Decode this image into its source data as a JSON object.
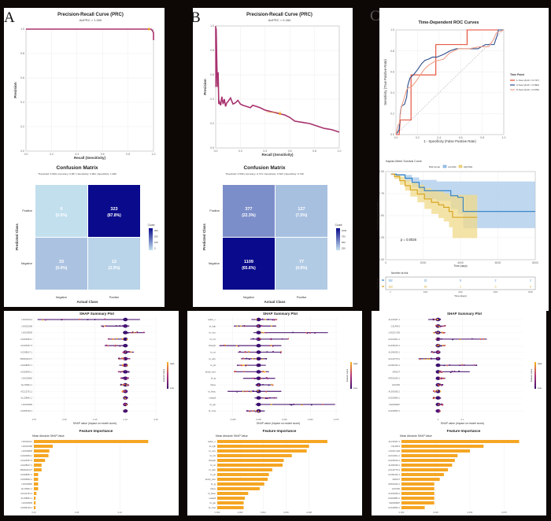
{
  "panels": {
    "A": "A",
    "B": "B",
    "C": "C"
  },
  "chart_data": [
    {
      "id": "A-prc",
      "type": "line",
      "title": "Precision-Recall Curve (PRC)",
      "subtitle": "AUPRC = 1.000",
      "xlabel": "Recall (Sensitivity)",
      "ylabel": "Precision",
      "xlim": [
        0,
        1
      ],
      "ylim": [
        0,
        1
      ],
      "xticks": [
        "0.0",
        "0.2",
        "0.4",
        "0.6",
        "0.8",
        "1.0"
      ],
      "yticks": [
        "0.0",
        "0.2",
        "0.4",
        "0.6",
        "0.8",
        "1.0"
      ],
      "x": [
        0,
        0.96,
        0.98,
        0.99,
        1.0,
        1.0
      ],
      "y": [
        1,
        1,
        1,
        0.99,
        0.97,
        0.91
      ],
      "threshold_point": {
        "x": 0.965,
        "y": 1.0
      },
      "grid": true,
      "color": "#a8326e",
      "marker_color": "#f0a020"
    },
    {
      "id": "A-cm",
      "type": "heatmap",
      "title": "Confusion Matrix",
      "subtitle": "Threshold: 0.500 | Accuracy: 0.967 | Sensitivity: 0.964 | Specificity: 1.000",
      "xlabel": "Actual Class",
      "ylabel": "Predicted Class",
      "x_categories": [
        "Negative",
        "Positive"
      ],
      "y_categories": [
        "Positive",
        "Negative"
      ],
      "cells": [
        {
          "pred": "Positive",
          "actual": "Negative",
          "count": "0",
          "pct": "(0.0%)"
        },
        {
          "pred": "Positive",
          "actual": "Positive",
          "count": "323",
          "pct": "(87.8%)"
        },
        {
          "pred": "Negative",
          "actual": "Negative",
          "count": "33",
          "pct": "(9.0%)"
        },
        {
          "pred": "Negative",
          "actual": "Positive",
          "count": "12",
          "pct": "(3.3%)"
        }
      ],
      "values": [
        [
          0,
          323
        ],
        [
          33,
          12
        ]
      ],
      "max": 323,
      "legend": {
        "title": "Count",
        "ticks": [
          "300",
          "200",
          "100",
          "0"
        ]
      }
    },
    {
      "id": "B-prc",
      "type": "line",
      "title": "Precision-Recall Curve (PRC)",
      "subtitle": "AUPRC = 0.284",
      "xlabel": "Recall (Sensitivity)",
      "ylabel": "Precision",
      "xlim": [
        0,
        1
      ],
      "ylim": [
        0,
        1
      ],
      "xticks": [
        "0.0",
        "0.2",
        "0.4",
        "0.6",
        "0.8",
        "1.0"
      ],
      "yticks": [
        "0.0",
        "0.2",
        "0.4",
        "0.6",
        "0.8",
        "1.0"
      ],
      "x": [
        0.0,
        0.002,
        0.004,
        0.01,
        0.015,
        0.02,
        0.025,
        0.03,
        0.04,
        0.05,
        0.06,
        0.07,
        0.08,
        0.09,
        0.1,
        0.12,
        0.14,
        0.16,
        0.18,
        0.2,
        0.22,
        0.25,
        0.28,
        0.3,
        0.33,
        0.36,
        0.4,
        0.44,
        0.48,
        0.52,
        0.56,
        0.6,
        0.64,
        0.7,
        0.76,
        0.82,
        0.88,
        0.94,
        1.0
      ],
      "y": [
        1.0,
        0.5,
        0.98,
        0.67,
        0.5,
        0.62,
        0.36,
        0.38,
        0.35,
        0.42,
        0.36,
        0.4,
        0.34,
        0.37,
        0.38,
        0.41,
        0.36,
        0.37,
        0.39,
        0.36,
        0.35,
        0.34,
        0.33,
        0.35,
        0.34,
        0.33,
        0.31,
        0.3,
        0.29,
        0.28,
        0.27,
        0.25,
        0.22,
        0.21,
        0.2,
        0.18,
        0.16,
        0.15,
        0.13
      ],
      "threshold_point": {
        "x": 0.52,
        "y": 0.28,
        "label": "Threshold: 0.5"
      },
      "grid": true,
      "color": "#a8326e",
      "marker_color": "#f0a020"
    },
    {
      "id": "B-cm",
      "type": "heatmap",
      "title": "Confusion Matrix",
      "subtitle": "Threshold: 0.500 | Accuracy: 0.731 | Sensitivity: 0.623 | Specificity: 0.746",
      "xlabel": "Actual Class",
      "ylabel": "Predicted Class",
      "x_categories": [
        "Negative",
        "Positive"
      ],
      "y_categories": [
        "Positive",
        "Negative"
      ],
      "cells": [
        {
          "pred": "Positive",
          "actual": "Negative",
          "count": "377",
          "pct": "(22.3%)"
        },
        {
          "pred": "Positive",
          "actual": "Positive",
          "count": "127",
          "pct": "(7.5%)"
        },
        {
          "pred": "Negative",
          "actual": "Negative",
          "count": "1109",
          "pct": "(65.6%)"
        },
        {
          "pred": "Negative",
          "actual": "Positive",
          "count": "77",
          "pct": "(4.6%)"
        }
      ],
      "values": [
        [
          377,
          127
        ],
        [
          1109,
          77
        ]
      ],
      "max": 1109,
      "legend": {
        "title": "Count",
        "ticks": [
          "1000",
          "750",
          "500",
          "250"
        ]
      }
    },
    {
      "id": "C-roc",
      "type": "line",
      "title": "Time-Dependent ROC Curves",
      "xlabel": "1 - Specificity (False Positive Rate)",
      "ylabel": "Sensitivity (True Positive Rate)",
      "xlim": [
        0,
        1
      ],
      "ylim": [
        0,
        1
      ],
      "xticks": [
        "0.0",
        "0.2",
        "0.4",
        "0.6",
        "0.8",
        "1.0"
      ],
      "yticks": [
        "0.0",
        "0.2",
        "0.4",
        "0.6",
        "0.8",
        "1.0"
      ],
      "legend": {
        "title": "Time Point"
      },
      "series": [
        {
          "name": "1-Year (AUC = 0.747)",
          "color": "#e4472f",
          "x": [
            0,
            0.03,
            0.04,
            0.04,
            0.14,
            0.14,
            0.17,
            0.17,
            0.37,
            0.37,
            0.66,
            0.66,
            0.95,
            1.0
          ],
          "y": [
            0,
            0,
            0.14,
            0.14,
            0.14,
            0.57,
            0.57,
            0.57,
            0.57,
            0.86,
            0.86,
            1.0,
            1.0,
            1.0
          ]
        },
        {
          "name": "3-Year (AUC = 0.690)",
          "color": "#2b4c8c",
          "x": [
            0,
            0.02,
            0.03,
            0.04,
            0.05,
            0.08,
            0.1,
            0.11,
            0.13,
            0.17,
            0.2,
            0.24,
            0.27,
            0.3,
            0.34,
            0.38,
            0.45,
            0.5,
            0.56,
            0.66,
            0.76,
            0.83,
            0.91,
            0.94,
            0.95,
            1.0
          ],
          "y": [
            0,
            0.03,
            0.05,
            0.2,
            0.27,
            0.29,
            0.36,
            0.47,
            0.54,
            0.58,
            0.62,
            0.68,
            0.71,
            0.72,
            0.74,
            0.74,
            0.77,
            0.8,
            0.82,
            0.82,
            0.82,
            0.86,
            0.86,
            0.95,
            1.0,
            1.0
          ]
        },
        {
          "name": "5-Year (AUC = 0.678)",
          "color": "#f0a08a",
          "x": [
            0,
            0.02,
            0.03,
            0.05,
            0.08,
            0.1,
            0.12,
            0.14,
            0.18,
            0.22,
            0.26,
            0.3,
            0.36,
            0.44,
            0.5,
            0.58,
            0.68,
            0.78,
            0.86,
            0.9,
            0.93,
            1.0
          ],
          "y": [
            0,
            0.09,
            0.1,
            0.26,
            0.36,
            0.43,
            0.45,
            0.45,
            0.5,
            0.56,
            0.62,
            0.66,
            0.7,
            0.72,
            0.78,
            0.82,
            0.82,
            0.84,
            0.84,
            0.9,
            0.97,
            1.0
          ]
        }
      ],
      "diagonal": true
    },
    {
      "id": "C-km",
      "type": "line",
      "title": "Kaplan-Meier Survival Curve",
      "xlabel": "Time (days)",
      "ylabel": "Overall Survival Probability",
      "xlim": [
        0,
        8000
      ],
      "ylim": [
        0,
        1
      ],
      "xticks": [
        "0",
        "2000",
        "4000",
        "6000",
        "8000"
      ],
      "yticks": [
        "0.00",
        "0.25",
        "0.50",
        "0.75",
        "1.00"
      ],
      "legend": {
        "title": "Risk Group",
        "entries": [
          "Low Risk",
          "High Risk"
        ]
      },
      "annotation": "p = 0.0026",
      "series": [
        {
          "name": "Low Risk",
          "color": "#2e7fc4",
          "fill": "#a9c9ea",
          "x": [
            0,
            300,
            800,
            1200,
            1600,
            1900,
            2100,
            2600,
            3400,
            3800,
            4100,
            8200
          ],
          "y": [
            1.0,
            0.99,
            0.95,
            0.9,
            0.84,
            0.8,
            0.8,
            0.8,
            0.74,
            0.72,
            0.55,
            0.55
          ],
          "lower": [
            1.0,
            0.98,
            0.91,
            0.84,
            0.77,
            0.71,
            0.7,
            0.68,
            0.58,
            0.52,
            0.35,
            0.35
          ],
          "upper": [
            1.0,
            1.0,
            0.99,
            0.96,
            0.93,
            0.93,
            0.93,
            0.91,
            0.91,
            0.91,
            0.91,
            0.91
          ]
        },
        {
          "name": "High Risk",
          "color": "#d4a017",
          "fill": "#f0d98a",
          "x": [
            0,
            200,
            500,
            800,
            1100,
            1500,
            1900,
            2300,
            2700,
            3000,
            3300,
            3500,
            4000,
            4900
          ],
          "y": [
            1.0,
            0.97,
            0.92,
            0.86,
            0.81,
            0.76,
            0.7,
            0.66,
            0.63,
            0.6,
            0.55,
            0.48,
            0.48,
            0.48
          ],
          "lower": [
            1.0,
            0.94,
            0.87,
            0.8,
            0.73,
            0.66,
            0.58,
            0.52,
            0.47,
            0.43,
            0.36,
            0.23,
            0.23,
            0.23
          ],
          "upper": [
            1.0,
            1.0,
            0.97,
            0.93,
            0.9,
            0.87,
            0.83,
            0.81,
            0.79,
            0.77,
            0.75,
            0.75,
            0.75,
            0.75
          ]
        }
      ],
      "risk_table": {
        "title": "Number at risk",
        "ylabel": "Risk Group",
        "xlabel": "Time (days)",
        "times": [
          "0",
          "2000",
          "4000",
          "6000",
          "8000"
        ],
        "rows": [
          {
            "group": "Low Risk",
            "values": [
              "162",
              "32",
              "6",
              "2",
              "2"
            ]
          },
          {
            "group": "High Risk",
            "values": [
              "163",
              "39",
              "1",
              "0",
              "0"
            ]
          }
        ]
      }
    },
    {
      "id": "A-shap",
      "type": "scatter",
      "title": "SHAP Summary Plot",
      "xlabel": "SHAP value (impact on model score)",
      "xlim": [
        -0.75,
        0.25
      ],
      "xticks": [
        "-0.75",
        "-0.50",
        "-0.25",
        "0.00",
        "0.25"
      ],
      "features": [
        "LINC01614",
        "LINC01508",
        "LINC00839",
        "AC020663.1",
        "AC104537.3",
        "AC248617.1",
        "PRDM16-DT",
        "AC008697.1",
        "AC005842.1",
        "LINC00892",
        "AL135911.1",
        "AC112751.2",
        "AL158841.1",
        "LINC00659",
        "AC095129.1"
      ],
      "ranges": [
        [
          -0.72,
          0.12
        ],
        [
          -0.2,
          0.03
        ],
        [
          -0.02,
          0.16
        ],
        [
          -0.14,
          0.02
        ],
        [
          -0.17,
          0.02
        ],
        [
          -0.02,
          0.07
        ],
        [
          -0.06,
          0.04
        ],
        [
          -0.05,
          0.02
        ],
        [
          -0.06,
          0.03
        ],
        [
          -0.04,
          0.03
        ],
        [
          -0.04,
          0.03
        ],
        [
          -0.03,
          0.01
        ],
        [
          -0.01,
          0.02
        ],
        [
          -0.01,
          0.02
        ],
        [
          -0.01,
          0.01
        ]
      ],
      "legend": {
        "title": "Feature value",
        "high": "High",
        "low": "Low"
      }
    },
    {
      "id": "A-imp",
      "type": "bar",
      "title": "Feature Importance",
      "subtitle": "Mean Absolute SHAP Value",
      "xlim": [
        0,
        0.14
      ],
      "xticks": [
        "0.00",
        "0.05",
        "0.10"
      ],
      "categories": [
        "LINC01614",
        "LINC01508",
        "LINC00839",
        "AC020663.1",
        "AC104537.3",
        "AC248617.1",
        "PRDM16-DT",
        "AC008697.1",
        "AC005842.1",
        "LINC00892",
        "AL135911.1",
        "AC112751.2",
        "AL158841.1",
        "LINC00659",
        "AC095129.1"
      ],
      "values": [
        0.133,
        0.022,
        0.018,
        0.017,
        0.013,
        0.009,
        0.009,
        0.005,
        0.005,
        0.005,
        0.005,
        0.003,
        0.002,
        0.002,
        0.002
      ],
      "color": "#f5a623"
    },
    {
      "id": "B-shap",
      "type": "scatter",
      "title": "SHAP Summary Plot",
      "xlabel": "SHAP value (impact on model score)",
      "xlim": [
        -0.04,
        0.078
      ],
      "xticks": [
        "-0.025",
        "0.000",
        "0.025",
        "0.050",
        "0.075"
      ],
      "features": [
        "nation_c",
        "bt_hgb",
        "bt_mcv",
        "bt_hct",
        "bheight",
        "bt_crt",
        "bt_wbc",
        "bt_plt",
        "family_size",
        "bt_tg",
        "fdose",
        "bt_hbac",
        "meatall",
        "bt_glu",
        "bt_crea"
      ],
      "ranges": [
        [
          -0.007,
          0.018
        ],
        [
          -0.024,
          0.017
        ],
        [
          -0.005,
          0.067
        ],
        [
          -0.008,
          0.029
        ],
        [
          -0.038,
          0.022
        ],
        [
          -0.02,
          0.022
        ],
        [
          -0.017,
          0.008
        ],
        [
          -0.021,
          0.007
        ],
        [
          -0.024,
          0.01
        ],
        [
          -0.015,
          0.016
        ],
        [
          -0.003,
          0.014
        ],
        [
          -0.03,
          0.022
        ],
        [
          -0.004,
          0.018
        ],
        [
          -0.003,
          0.074
        ],
        [
          -0.012,
          0.006
        ]
      ],
      "legend": {
        "title": "Feature value",
        "high": "High",
        "low": "Low"
      }
    },
    {
      "id": "B-imp",
      "type": "bar",
      "title": "Feature Importance",
      "subtitle": "Mean Absolute SHAP Value",
      "xlim": [
        0,
        0.0105
      ],
      "xticks": [
        "0.000",
        "0.002",
        "0.004",
        "0.006",
        "0.008"
      ],
      "categories": [
        "nation_c",
        "bt_hgb",
        "bt_mcv",
        "bt_hct",
        "bheight",
        "bt_crt",
        "bt_wbc",
        "bt_plt",
        "family_size",
        "bt_tg",
        "fdose",
        "bt_hbac",
        "meatall",
        "bt_glu",
        "bt_crea"
      ],
      "values": [
        0.0096,
        0.008,
        0.0078,
        0.0065,
        0.0058,
        0.0057,
        0.0048,
        0.0045,
        0.0044,
        0.0041,
        0.0037,
        0.0027,
        0.0024,
        0.0023,
        0.0023
      ],
      "color": "#f5a623"
    },
    {
      "id": "C-shap",
      "type": "scatter",
      "title": "SHAP Summary Plot",
      "xlabel": "SHAP value (impact on model score)",
      "xlim": [
        -0.15,
        0.35
      ],
      "xticks": [
        "0",
        "0.1"
      ],
      "features": [
        "AL133467.1",
        "CSLPIKS",
        "LINC01 929",
        "AC104611.1",
        "AC105219.1",
        "AL096439.1",
        "AC116775.2",
        "AC092116.1",
        "SIRLNT",
        "AP001094.1",
        "HOTAIR",
        "AL391665.2",
        "AC020884.1",
        "FAM183DP",
        "AC100846.1"
      ],
      "ranges": [
        [
          -0.04,
          0.01
        ],
        [
          -0.01,
          0.03
        ],
        [
          -0.02,
          0.03
        ],
        [
          -0.01,
          0.2
        ],
        [
          -0.01,
          0.03
        ],
        [
          -0.03,
          0.01
        ],
        [
          -0.08,
          0.0
        ],
        [
          0.0,
          0.16
        ],
        [
          0.0,
          0.13
        ],
        [
          0.0,
          0.03
        ],
        [
          0.0,
          0.02
        ],
        [
          -0.02,
          0.01
        ],
        [
          -0.02,
          0.01
        ],
        [
          0.0,
          0.02
        ],
        [
          -0.01,
          0.01
        ]
      ],
      "legend": {
        "title": "Feature value",
        "high": "High",
        "low": "Low"
      }
    },
    {
      "id": "C-imp",
      "type": "bar",
      "title": "Feature Importance",
      "subtitle": "Mean Absolute SHAP Value",
      "xlim": [
        0,
        0.088
      ],
      "xticks": [
        "0.000",
        "0.025",
        "0.050",
        "0.075"
      ],
      "categories": [
        "AL133467.1",
        "CSLPIKS",
        "LINC01 929",
        "AC104611.1",
        "AC105219.1",
        "AL096439.1",
        "AC116775.2",
        "AC092116.1",
        "SIRLNT",
        "AP001094.1",
        "HOTAIR",
        "AL391665.2",
        "AC020884.1",
        "FAM183DP",
        "AC100846.1"
      ],
      "values": [
        0.086,
        0.06,
        0.05,
        0.041,
        0.039,
        0.037,
        0.034,
        0.031,
        0.028,
        0.024,
        0.024,
        0.024,
        0.024,
        0.024,
        0.017
      ],
      "color": "#f5a623"
    }
  ]
}
